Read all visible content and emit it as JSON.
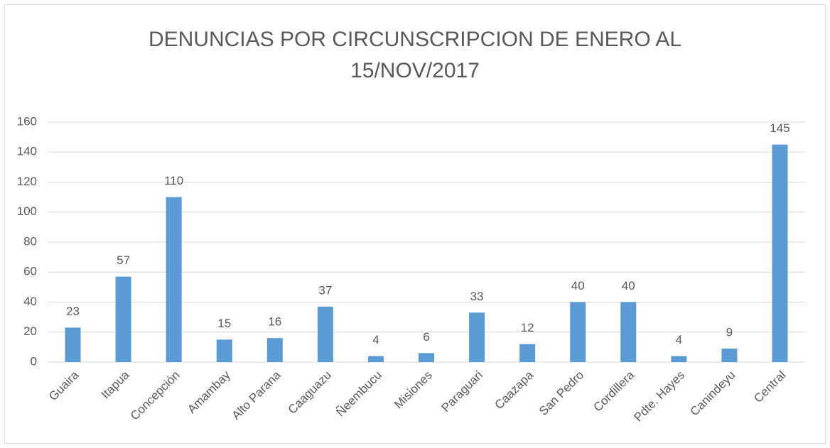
{
  "chart_data": {
    "type": "bar",
    "title": "DENUNCIAS POR CIRCUNSCRIPCION DE ENERO AL 15/NOV/2017",
    "categories": [
      "Guaira",
      "Itapua",
      "Concepción",
      "Amambay",
      "Alto Parana",
      "Caaguazu",
      "Ñeembucu",
      "Misiones",
      "Paraguari",
      "Caazapa",
      "San Pedro",
      "Cordillera",
      "Pdte. Hayes",
      "Canindeyu",
      "Central"
    ],
    "values": [
      23,
      57,
      110,
      15,
      16,
      37,
      4,
      6,
      33,
      12,
      40,
      40,
      4,
      9,
      145
    ],
    "color": "#5b9bd5",
    "ylim": [
      0,
      160
    ],
    "yticks": [
      0,
      20,
      40,
      60,
      80,
      100,
      120,
      140,
      160
    ],
    "grid": true
  }
}
